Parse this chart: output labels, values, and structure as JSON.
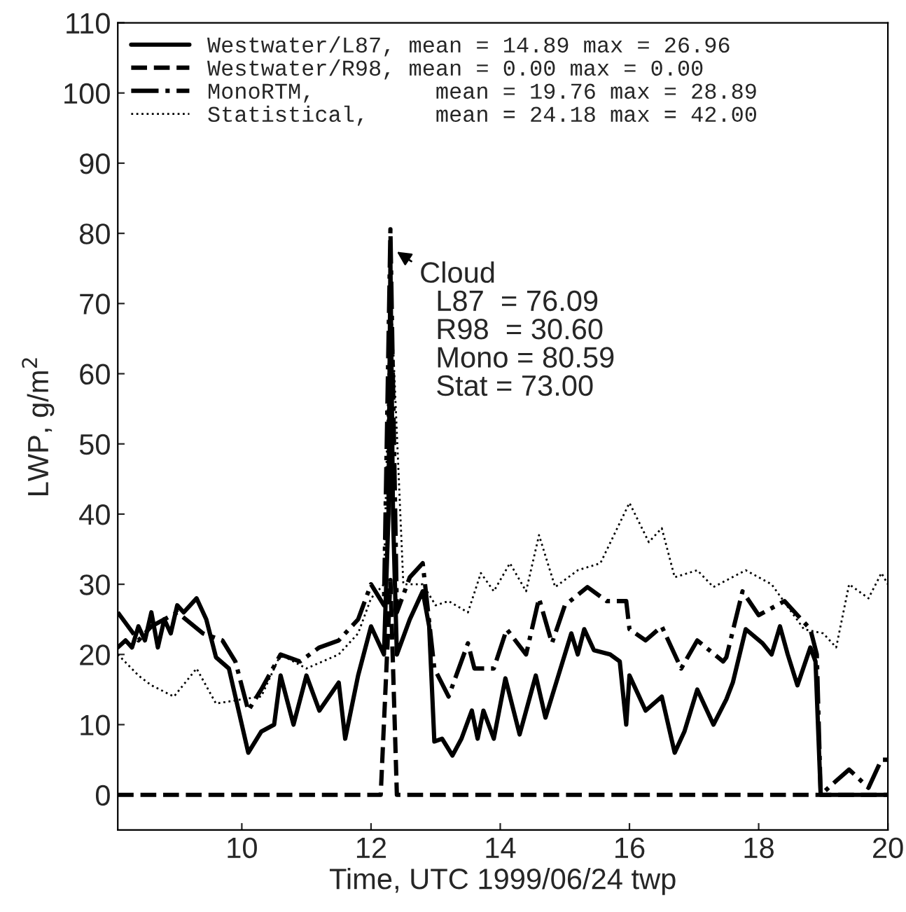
{
  "chart_data": {
    "type": "line",
    "xlabel": "Time, UTC 1999/06/24 twp",
    "ylabel": "LWP, g/m$^{2}$",
    "xlim": [
      8.08,
      20
    ],
    "xticks": [
      10,
      12,
      14,
      16,
      18,
      20
    ],
    "ylim": [
      -5,
      110
    ],
    "yticks": [
      0,
      10,
      20,
      30,
      40,
      50,
      60,
      70,
      80,
      90,
      100,
      110
    ],
    "grid": false,
    "legend": "top left",
    "marker": "none",
    "series": [
      {
        "name": "Westwater/L87, mean = 14.89 max = 26.96",
        "color": "#000000",
        "line_style": "solid",
        "x": [
          8.08,
          8.2,
          8.3,
          8.4,
          8.5,
          8.6,
          8.7,
          8.8,
          8.9,
          9.0,
          9.1,
          9.3,
          9.45,
          9.6,
          9.8,
          9.95,
          10.1,
          10.3,
          10.5,
          10.6,
          10.8,
          11.0,
          11.2,
          11.5,
          11.6,
          11.8,
          12.0,
          12.2,
          12.27,
          12.3,
          12.34,
          12.4,
          12.6,
          12.8,
          12.9,
          12.98,
          13.1,
          13.26,
          13.4,
          13.56,
          13.65,
          13.74,
          13.9,
          14.08,
          14.3,
          14.55,
          14.7,
          14.9,
          15.1,
          15.2,
          15.3,
          15.45,
          15.7,
          15.85,
          15.95,
          16.0,
          16.25,
          16.5,
          16.7,
          16.85,
          17.05,
          17.3,
          17.5,
          17.6,
          17.8,
          18.06,
          18.2,
          18.33,
          18.45,
          18.6,
          18.8,
          18.88,
          18.96,
          19.5,
          20
        ],
        "values": [
          21,
          22,
          21,
          24,
          22,
          26,
          21,
          25,
          23,
          27,
          26,
          28,
          25,
          19.6,
          18,
          12,
          6,
          9,
          10,
          17,
          10,
          17,
          12,
          16,
          8,
          17,
          24,
          20,
          40,
          76.09,
          40,
          20,
          25,
          29,
          24,
          7.6,
          8,
          5.6,
          8,
          12,
          8,
          12,
          8,
          16.6,
          8.6,
          17,
          11,
          17,
          23,
          20,
          23.6,
          20.6,
          20,
          19,
          10,
          17,
          12,
          14,
          6,
          9,
          15,
          10,
          13.6,
          16,
          23.6,
          21.6,
          20,
          24,
          20,
          15.6,
          21,
          19,
          0,
          0,
          0
        ]
      },
      {
        "name": "Westwater/R98, mean = 0.00 max = 0.00",
        "color": "#000000",
        "line_style": "dashed",
        "x": [
          8.08,
          12.15,
          12.3,
          12.4,
          20
        ],
        "values": [
          0,
          0,
          30.6,
          0,
          0
        ]
      },
      {
        "name": "MonoRTM,         mean = 19.76 max = 28.89",
        "color": "#000000",
        "line_style": "dashdot",
        "x": [
          8.08,
          8.4,
          8.6,
          9.0,
          9.4,
          9.7,
          9.9,
          10.1,
          10.3,
          10.6,
          10.9,
          11.2,
          11.5,
          11.8,
          12.0,
          12.2,
          12.3,
          12.4,
          12.6,
          12.8,
          12.98,
          13.2,
          13.5,
          13.6,
          13.9,
          14.1,
          14.4,
          14.6,
          14.8,
          15.0,
          15.35,
          15.65,
          15.95,
          16.0,
          16.25,
          16.5,
          16.8,
          17.05,
          17.45,
          17.5,
          17.75,
          18.0,
          18.4,
          18.8,
          18.9,
          18.96,
          19.2,
          19.4,
          19.7,
          19.9,
          20
        ],
        "values": [
          26,
          22,
          24,
          26,
          23,
          22,
          19,
          12,
          15,
          20,
          19,
          21,
          22,
          25,
          30,
          27,
          80.59,
          26,
          31,
          33,
          18,
          14,
          21.6,
          18,
          18,
          23.6,
          20,
          28,
          21.6,
          27,
          29.6,
          27.6,
          27.6,
          23.6,
          22,
          24,
          18,
          22,
          19,
          19.6,
          29,
          25.6,
          27.6,
          23.6,
          20,
          0,
          2,
          3.6,
          1,
          5,
          5
        ]
      },
      {
        "name": "Statistical,     mean = 24.18 max = 42.00",
        "color": "#000000",
        "line_style": "dotted",
        "x": [
          8.08,
          8.4,
          8.6,
          8.95,
          9.3,
          9.6,
          10.0,
          10.3,
          10.6,
          11.0,
          11.5,
          11.8,
          12.0,
          12.2,
          12.3,
          12.5,
          12.8,
          13.0,
          13.2,
          13.5,
          13.7,
          13.9,
          14.15,
          14.4,
          14.6,
          14.85,
          15.2,
          15.55,
          16.0,
          16.3,
          16.5,
          16.7,
          17.05,
          17.3,
          17.8,
          18.2,
          18.7,
          19.0,
          19.2,
          19.4,
          19.7,
          19.9,
          20
        ],
        "values": [
          20,
          17,
          15.6,
          14,
          18,
          13,
          13.6,
          14,
          20,
          18,
          20,
          23,
          28,
          30,
          73,
          30,
          30,
          27,
          27.6,
          26,
          31.6,
          29,
          33,
          29,
          37,
          29.6,
          32,
          33,
          41.6,
          36,
          38,
          31,
          32,
          29.6,
          32,
          30,
          23.6,
          23,
          21,
          30,
          28,
          31.6,
          30
        ]
      }
    ],
    "annotations": [
      {
        "text": "Cloud\n  L87  = 76.09\n  R98  = 30.60\n  Mono = 80.59\n  Stat = 73.00",
        "x": 12.3,
        "y": 78
      }
    ]
  }
}
